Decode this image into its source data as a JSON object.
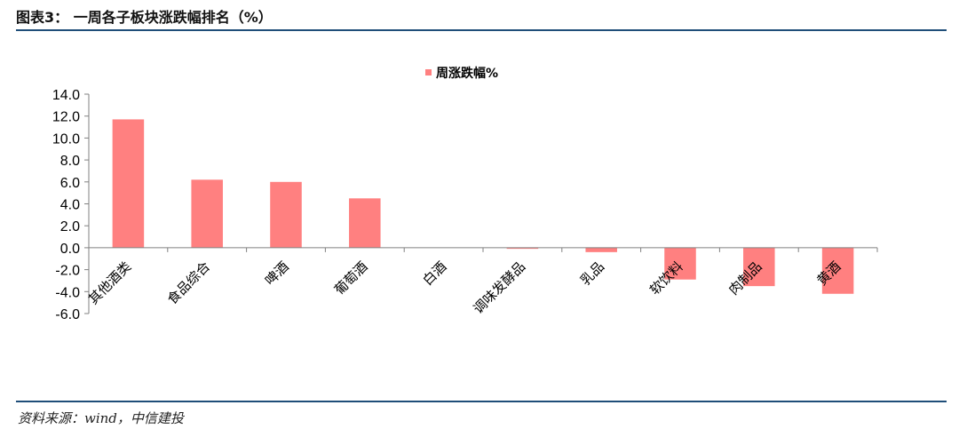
{
  "header": {
    "title": "图表3： 一周各子板块涨跌幅排名（%）"
  },
  "footer": {
    "source": "资料来源：wind，中信建投"
  },
  "colors": {
    "bar": "#ff8080",
    "rule": "#1f4e79"
  },
  "chart_data": {
    "type": "bar",
    "title": "",
    "xlabel": "",
    "ylabel": "",
    "categories": [
      "其他酒类",
      "食品综合",
      "啤酒",
      "葡萄酒",
      "白酒",
      "调味发酵品",
      "乳品",
      "软饮料",
      "肉制品",
      "黄酒"
    ],
    "series": [
      {
        "name": "周涨跌幅%",
        "values": [
          11.7,
          6.2,
          6.0,
          4.5,
          0.0,
          -0.1,
          -0.4,
          -2.9,
          -3.5,
          -4.2
        ]
      }
    ],
    "ylim": [
      -6.0,
      14.0
    ],
    "yticks": [
      "14.0",
      "12.0",
      "10.0",
      "8.0",
      "6.0",
      "4.0",
      "2.0",
      "0.0",
      "-2.0",
      "-4.0",
      "-6.0"
    ],
    "grid": false,
    "legend": "top-center"
  }
}
